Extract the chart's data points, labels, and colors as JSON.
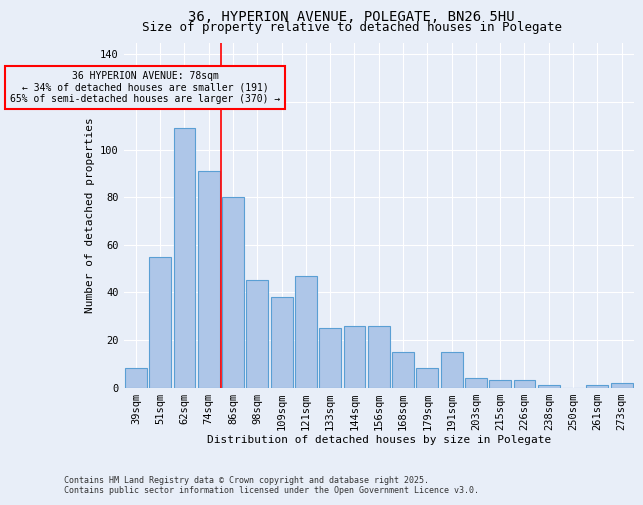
{
  "title": "36, HYPERION AVENUE, POLEGATE, BN26 5HU",
  "subtitle": "Size of property relative to detached houses in Polegate",
  "xlabel": "Distribution of detached houses by size in Polegate",
  "ylabel": "Number of detached properties",
  "categories": [
    "39sqm",
    "51sqm",
    "62sqm",
    "74sqm",
    "86sqm",
    "98sqm",
    "109sqm",
    "121sqm",
    "133sqm",
    "144sqm",
    "156sqm",
    "168sqm",
    "179sqm",
    "191sqm",
    "203sqm",
    "215sqm",
    "226sqm",
    "238sqm",
    "250sqm",
    "261sqm",
    "273sqm"
  ],
  "values": [
    8,
    55,
    109,
    91,
    80,
    45,
    38,
    47,
    25,
    26,
    26,
    15,
    8,
    15,
    4,
    3,
    3,
    1,
    0,
    1,
    2
  ],
  "bar_color": "#aec6e8",
  "bar_edge_color": "#5a9fd4",
  "background_color": "#e8eef8",
  "grid_color": "#ffffff",
  "red_line_x": 3.5,
  "annotation_text": "36 HYPERION AVENUE: 78sqm\n← 34% of detached houses are smaller (191)\n65% of semi-detached houses are larger (370) →",
  "ylim": [
    0,
    145
  ],
  "yticks": [
    0,
    20,
    40,
    60,
    80,
    100,
    120,
    140
  ],
  "footer": "Contains HM Land Registry data © Crown copyright and database right 2025.\nContains public sector information licensed under the Open Government Licence v3.0.",
  "title_fontsize": 10,
  "subtitle_fontsize": 9,
  "xlabel_fontsize": 8,
  "ylabel_fontsize": 8,
  "tick_fontsize": 7.5,
  "footer_fontsize": 6
}
